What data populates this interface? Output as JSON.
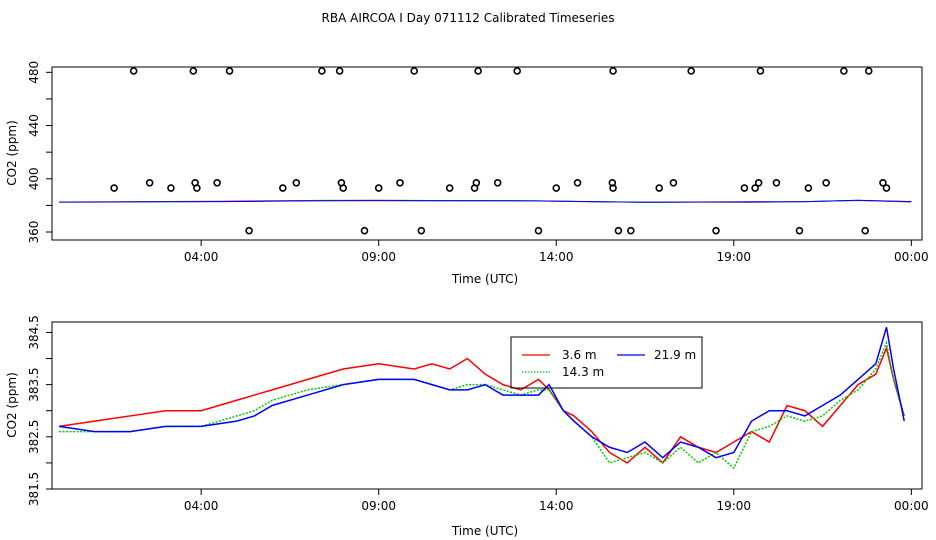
{
  "chart_data": [
    {
      "type": "scatter",
      "title": "RBA AIRCOA I  Day 071112  Calibrated Timeseries",
      "xlabel": "Time (UTC)",
      "ylabel": "CO2 (ppm)",
      "xlim": [
        -0.2,
        24.3
      ],
      "ylim": [
        354,
        484
      ],
      "x_ticks": [
        4,
        9,
        14,
        19,
        24
      ],
      "x_tick_labels": [
        "04:00",
        "09:00",
        "14:00",
        "19:00",
        "00:00"
      ],
      "y_ticks": [
        360,
        380,
        400,
        420,
        440,
        460,
        480
      ],
      "y_tick_labels": [
        "360",
        "",
        "400",
        "",
        "440",
        "",
        "480"
      ],
      "points": {
        "x": [
          1.55,
          2.55,
          2.1,
          3.15,
          3.88,
          3.83,
          3.78,
          4.45,
          4.8,
          5.35,
          6.3,
          6.68,
          7.4,
          7.9,
          7.95,
          8.0,
          8.6,
          9.0,
          9.6,
          10.0,
          10.2,
          11.0,
          11.7,
          11.75,
          11.8,
          12.35,
          12.9,
          13.5,
          14.0,
          14.6,
          15.6,
          15.58,
          15.6,
          15.75,
          16.1,
          16.9,
          17.3,
          17.8,
          18.5,
          19.3,
          19.6,
          19.7,
          19.75,
          20.2,
          20.85,
          21.1,
          21.6,
          22.1,
          22.7,
          22.8,
          23.2,
          23.3
        ],
        "y": [
          393,
          397,
          481,
          393,
          393,
          397,
          481,
          397,
          481,
          361,
          393,
          397,
          481,
          481,
          397,
          393,
          361,
          393,
          397,
          481,
          361,
          393,
          393,
          397,
          481,
          397,
          481,
          361,
          393,
          397,
          481,
          397,
          393,
          361,
          361,
          393,
          397,
          481,
          361,
          393,
          393,
          397,
          481,
          397,
          361,
          393,
          397,
          481,
          361,
          481,
          397,
          393
        ]
      },
      "series": [
        {
          "name": "3.6 m",
          "color": "#ff0000",
          "values": [
            382.6,
            382.7,
            382.9,
            383.1,
            383.5,
            383.8,
            383.9,
            383.7,
            383.6,
            383.3,
            382.7,
            382.4,
            382.5,
            382.3,
            382.8,
            383.7,
            382.6
          ]
        },
        {
          "name": "14.3 m",
          "color": "#00cc00",
          "values": [
            382.5,
            382.6,
            382.7,
            382.8,
            383.2,
            383.6,
            383.6,
            383.5,
            383.5,
            383.4,
            382.8,
            382.3,
            382.6,
            382.6,
            382.7,
            383.8,
            382.8
          ]
        },
        {
          "name": "21.9 m",
          "color": "#0000ff",
          "values": [
            382.5,
            382.6,
            382.7,
            382.8,
            383.2,
            383.5,
            383.6,
            383.5,
            383.5,
            383.4,
            382.8,
            382.4,
            382.6,
            382.7,
            382.8,
            383.9,
            382.8
          ]
        }
      ],
      "series_x": [
        0,
        1.5,
        3,
        4.5,
        6,
        7.5,
        9,
        10.5,
        12,
        13.5,
        15,
        16.5,
        18,
        19.5,
        21,
        22.5,
        24
      ]
    },
    {
      "type": "line",
      "title": "",
      "xlabel": "Time (UTC)",
      "ylabel": "CO2 (ppm)",
      "xlim": [
        -0.2,
        24.3
      ],
      "ylim": [
        381.5,
        384.7
      ],
      "x_ticks": [
        4,
        9,
        14,
        19,
        24
      ],
      "x_tick_labels": [
        "04:00",
        "09:00",
        "14:00",
        "19:00",
        "00:00"
      ],
      "y_ticks": [
        381.5,
        382,
        382.5,
        383,
        383.5,
        384,
        384.5
      ],
      "y_tick_labels": [
        "381.5",
        "",
        "382.5",
        "",
        "383.5",
        "",
        "384.5"
      ],
      "legend": {
        "position": "top-center",
        "entries": [
          "3.6 m",
          "21.9 m",
          "14.3 m"
        ]
      },
      "series": [
        {
          "name": "3.6 m",
          "color": "#ff0000",
          "line": "solid",
          "x": [
            0,
            1,
            2,
            3,
            4,
            5,
            5.5,
            6,
            7,
            8,
            9,
            10,
            10.5,
            11,
            11.5,
            12,
            12.5,
            13,
            13.5,
            13.8,
            14.2,
            14.5,
            15,
            15.5,
            16,
            16.5,
            17,
            17.5,
            18,
            18.5,
            19,
            19.5,
            20,
            20.5,
            21,
            21.5,
            22,
            22.5,
            23,
            23.3,
            23.5,
            23.8
          ],
          "y": [
            382.7,
            382.8,
            382.9,
            383.0,
            383.0,
            383.2,
            383.3,
            383.4,
            383.6,
            383.8,
            383.9,
            383.8,
            383.9,
            383.8,
            384.0,
            383.7,
            383.5,
            383.4,
            383.6,
            383.4,
            383.0,
            382.9,
            382.6,
            382.2,
            382.0,
            382.3,
            382.0,
            382.5,
            382.3,
            382.2,
            382.4,
            382.6,
            382.4,
            383.1,
            383.0,
            382.7,
            383.1,
            383.5,
            383.7,
            384.2,
            383.6,
            382.9
          ]
        },
        {
          "name": "14.3 m",
          "color": "#00cc00",
          "line": "dotted",
          "x": [
            0,
            1,
            2,
            3,
            4,
            5,
            5.5,
            6,
            7,
            8,
            9,
            10,
            10.5,
            11,
            11.5,
            12,
            12.5,
            13,
            13.5,
            13.8,
            14.2,
            14.5,
            15,
            15.5,
            16,
            16.5,
            17,
            17.5,
            18,
            18.5,
            19,
            19.5,
            20,
            20.5,
            21,
            21.5,
            22,
            22.5,
            23,
            23.3,
            23.5,
            23.8
          ],
          "y": [
            382.6,
            382.6,
            382.6,
            382.7,
            382.7,
            382.9,
            383.0,
            383.2,
            383.4,
            383.5,
            383.6,
            383.6,
            383.5,
            383.4,
            383.5,
            383.5,
            383.4,
            383.3,
            383.4,
            383.4,
            383.0,
            382.8,
            382.5,
            382.0,
            382.1,
            382.2,
            382.0,
            382.3,
            382.0,
            382.2,
            381.9,
            382.6,
            382.7,
            382.9,
            382.8,
            382.9,
            383.2,
            383.4,
            383.8,
            384.3,
            383.6,
            382.9
          ]
        },
        {
          "name": "21.9 m",
          "color": "#0000ff",
          "line": "solid",
          "x": [
            0,
            1,
            2,
            3,
            4,
            5,
            5.5,
            6,
            7,
            8,
            9,
            10,
            10.5,
            11,
            11.5,
            12,
            12.5,
            13,
            13.5,
            13.8,
            14.2,
            14.5,
            15,
            15.5,
            16,
            16.5,
            17,
            17.5,
            18,
            18.5,
            19,
            19.5,
            20,
            20.5,
            21,
            21.5,
            22,
            22.5,
            23,
            23.3,
            23.5,
            23.8
          ],
          "y": [
            382.7,
            382.6,
            382.6,
            382.7,
            382.7,
            382.8,
            382.9,
            383.1,
            383.3,
            383.5,
            383.6,
            383.6,
            383.5,
            383.4,
            383.4,
            383.5,
            383.3,
            383.3,
            383.3,
            383.5,
            383.0,
            382.8,
            382.5,
            382.3,
            382.2,
            382.4,
            382.1,
            382.4,
            382.3,
            382.1,
            382.2,
            382.8,
            383.0,
            383.0,
            382.9,
            383.1,
            383.3,
            383.6,
            383.9,
            384.6,
            383.8,
            382.8
          ]
        }
      ]
    }
  ]
}
